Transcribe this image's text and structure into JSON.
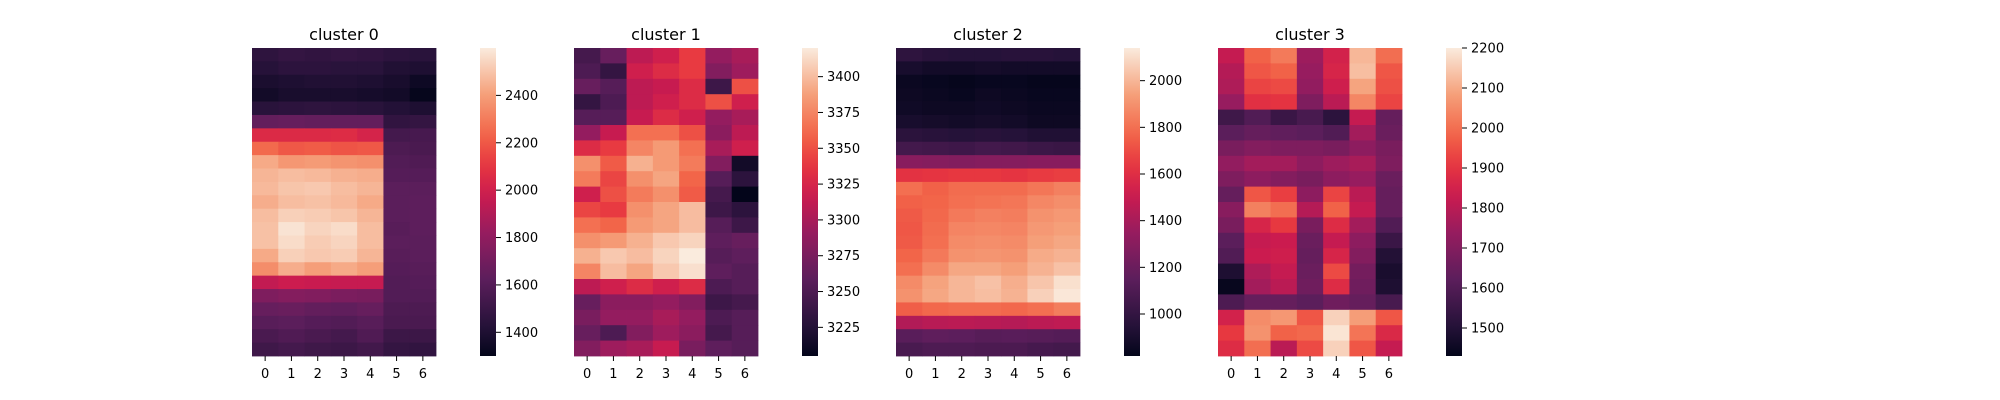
{
  "chart_data": [
    {
      "type": "heatmap",
      "title": "cluster 0",
      "x_categories": [
        "0",
        "1",
        "2",
        "3",
        "4",
        "5",
        "6"
      ],
      "colorbar": {
        "min": 1300,
        "max": 2600,
        "ticks": [
          1400,
          1600,
          1800,
          2000,
          2200,
          2400
        ]
      },
      "values": [
        [
          1460,
          1480,
          1470,
          1480,
          1470,
          1450,
          1440
        ],
        [
          1430,
          1450,
          1450,
          1440,
          1440,
          1410,
          1400
        ],
        [
          1390,
          1400,
          1410,
          1410,
          1400,
          1380,
          1340
        ],
        [
          1360,
          1380,
          1380,
          1380,
          1370,
          1360,
          1310
        ],
        [
          1440,
          1450,
          1460,
          1450,
          1440,
          1420,
          1400
        ],
        [
          1650,
          1660,
          1650,
          1650,
          1650,
          1470,
          1480
        ],
        [
          2050,
          2050,
          2050,
          2060,
          2020,
          1540,
          1550
        ],
        [
          2250,
          2200,
          2210,
          2190,
          2200,
          1570,
          1560
        ],
        [
          2430,
          2380,
          2390,
          2370,
          2360,
          1590,
          1580
        ],
        [
          2460,
          2480,
          2470,
          2450,
          2440,
          1600,
          1600
        ],
        [
          2470,
          2500,
          2510,
          2480,
          2460,
          1620,
          1620
        ],
        [
          2440,
          2480,
          2490,
          2470,
          2430,
          1620,
          1630
        ],
        [
          2480,
          2530,
          2520,
          2500,
          2460,
          1620,
          1630
        ],
        [
          2490,
          2580,
          2540,
          2560,
          2480,
          1610,
          1630
        ],
        [
          2490,
          2560,
          2520,
          2540,
          2480,
          1620,
          1620
        ],
        [
          2430,
          2530,
          2510,
          2520,
          2460,
          1610,
          1620
        ],
        [
          2350,
          2440,
          2400,
          2430,
          2400,
          1600,
          1610
        ],
        [
          1950,
          1980,
          1970,
          1960,
          1960,
          1590,
          1600
        ],
        [
          1740,
          1760,
          1750,
          1730,
          1720,
          1590,
          1590
        ],
        [
          1660,
          1670,
          1650,
          1640,
          1660,
          1570,
          1570
        ],
        [
          1610,
          1620,
          1600,
          1590,
          1610,
          1560,
          1560
        ],
        [
          1560,
          1580,
          1560,
          1540,
          1580,
          1510,
          1510
        ],
        [
          1520,
          1540,
          1520,
          1510,
          1530,
          1480,
          1470
        ]
      ]
    },
    {
      "type": "heatmap",
      "title": "cluster 1",
      "x_categories": [
        "0",
        "1",
        "2",
        "3",
        "4",
        "5",
        "6"
      ],
      "colorbar": {
        "min": 3205,
        "max": 3420,
        "ticks": [
          3225,
          3250,
          3275,
          3300,
          3325,
          3350,
          3375,
          3400
        ]
      },
      "values": [
        [
          3245,
          3265,
          3310,
          3320,
          3340,
          3290,
          3300
        ],
        [
          3250,
          3235,
          3320,
          3330,
          3340,
          3280,
          3295
        ],
        [
          3265,
          3255,
          3310,
          3315,
          3330,
          3240,
          3350
        ],
        [
          3235,
          3250,
          3310,
          3320,
          3330,
          3350,
          3320
        ],
        [
          3255,
          3255,
          3315,
          3330,
          3320,
          3290,
          3300
        ],
        [
          3290,
          3315,
          3365,
          3365,
          3350,
          3285,
          3310
        ],
        [
          3330,
          3340,
          3375,
          3385,
          3365,
          3300,
          3320
        ],
        [
          3380,
          3355,
          3395,
          3385,
          3370,
          3280,
          3215
        ],
        [
          3370,
          3345,
          3380,
          3390,
          3360,
          3255,
          3230
        ],
        [
          3320,
          3350,
          3370,
          3380,
          3355,
          3245,
          3205
        ],
        [
          3345,
          3340,
          3380,
          3390,
          3400,
          3240,
          3230
        ],
        [
          3365,
          3360,
          3385,
          3390,
          3400,
          3255,
          3240
        ],
        [
          3380,
          3385,
          3395,
          3405,
          3410,
          3260,
          3265
        ],
        [
          3395,
          3405,
          3400,
          3410,
          3420,
          3255,
          3260
        ],
        [
          3375,
          3400,
          3390,
          3405,
          3415,
          3260,
          3255
        ],
        [
          3310,
          3320,
          3330,
          3320,
          3330,
          3250,
          3255
        ],
        [
          3265,
          3285,
          3285,
          3290,
          3280,
          3240,
          3245
        ],
        [
          3275,
          3290,
          3290,
          3300,
          3290,
          3250,
          3255
        ],
        [
          3265,
          3250,
          3280,
          3295,
          3285,
          3245,
          3255
        ],
        [
          3280,
          3295,
          3300,
          3315,
          3275,
          3260,
          3255
        ]
      ]
    },
    {
      "type": "heatmap",
      "title": "cluster 2",
      "x_categories": [
        "0",
        "1",
        "2",
        "3",
        "4",
        "5",
        "6"
      ],
      "colorbar": {
        "min": 820,
        "max": 2140,
        "ticks": [
          1000,
          1200,
          1400,
          1600,
          1800,
          2000
        ]
      },
      "values": [
        [
          980,
          960,
          950,
          950,
          960,
          960,
          950
        ],
        [
          900,
          880,
          880,
          890,
          880,
          880,
          880
        ],
        [
          850,
          840,
          830,
          840,
          840,
          830,
          830
        ],
        [
          860,
          850,
          840,
          860,
          850,
          840,
          840
        ],
        [
          870,
          860,
          860,
          870,
          860,
          850,
          850
        ],
        [
          900,
          890,
          880,
          890,
          880,
          860,
          860
        ],
        [
          970,
          960,
          950,
          960,
          950,
          930,
          930
        ],
        [
          1060,
          1050,
          1040,
          1060,
          1050,
          1030,
          1020
        ],
        [
          1300,
          1290,
          1280,
          1290,
          1290,
          1300,
          1300
        ],
        [
          1620,
          1630,
          1640,
          1640,
          1630,
          1650,
          1660
        ],
        [
          1800,
          1760,
          1790,
          1790,
          1790,
          1820,
          1850
        ],
        [
          1760,
          1770,
          1800,
          1810,
          1820,
          1870,
          1890
        ],
        [
          1740,
          1780,
          1830,
          1850,
          1840,
          1900,
          1920
        ],
        [
          1730,
          1790,
          1860,
          1870,
          1860,
          1920,
          1940
        ],
        [
          1740,
          1800,
          1880,
          1890,
          1880,
          1940,
          1960
        ],
        [
          1770,
          1830,
          1900,
          1910,
          1900,
          1970,
          1990
        ],
        [
          1800,
          1880,
          1960,
          1960,
          1940,
          1990,
          2030
        ],
        [
          1880,
          1950,
          2000,
          2030,
          1980,
          2040,
          2110
        ],
        [
          1900,
          1960,
          2000,
          2020,
          1990,
          2070,
          2130
        ],
        [
          1750,
          1780,
          1790,
          1790,
          1780,
          1800,
          1840
        ],
        [
          1430,
          1450,
          1460,
          1450,
          1440,
          1460,
          1470
        ],
        [
          1140,
          1160,
          1150,
          1130,
          1140,
          1130,
          1120
        ],
        [
          1080,
          1100,
          1100,
          1090,
          1090,
          1070,
          1060
        ]
      ]
    },
    {
      "type": "heatmap",
      "title": "cluster 3",
      "x_categories": [
        "0",
        "1",
        "2",
        "3",
        "4",
        "5",
        "6"
      ],
      "colorbar": {
        "min": 1430,
        "max": 2200,
        "ticks": [
          1500,
          1600,
          1700,
          1800,
          1900,
          2000,
          2100,
          2200
        ]
      },
      "values": [
        [
          1820,
          1980,
          2020,
          1750,
          1850,
          2120,
          2000
        ],
        [
          1790,
          1960,
          1980,
          1740,
          1860,
          2130,
          1960
        ],
        [
          1780,
          1930,
          1940,
          1730,
          1840,
          2090,
          1950
        ],
        [
          1740,
          1890,
          1900,
          1690,
          1800,
          2040,
          1930
        ],
        [
          1560,
          1600,
          1550,
          1580,
          1520,
          1820,
          1640
        ],
        [
          1620,
          1640,
          1630,
          1620,
          1600,
          1760,
          1650
        ],
        [
          1680,
          1700,
          1690,
          1690,
          1680,
          1720,
          1680
        ],
        [
          1730,
          1760,
          1760,
          1720,
          1750,
          1770,
          1690
        ],
        [
          1690,
          1720,
          1700,
          1680,
          1720,
          1740,
          1650
        ],
        [
          1640,
          1960,
          1920,
          1720,
          1930,
          1800,
          1640
        ],
        [
          1710,
          2030,
          2000,
          1790,
          1980,
          1820,
          1640
        ],
        [
          1680,
          1860,
          1910,
          1680,
          1880,
          1760,
          1600
        ],
        [
          1620,
          1820,
          1830,
          1650,
          1820,
          1720,
          1550
        ],
        [
          1600,
          1830,
          1840,
          1640,
          1860,
          1700,
          1500
        ],
        [
          1490,
          1780,
          1820,
          1650,
          1940,
          1670,
          1480
        ],
        [
          1440,
          1760,
          1800,
          1660,
          1880,
          1660,
          1490
        ],
        [
          1590,
          1640,
          1640,
          1620,
          1660,
          1640,
          1580
        ],
        [
          1850,
          2050,
          2070,
          1960,
          2160,
          2080,
          1960
        ],
        [
          1910,
          2060,
          1980,
          1990,
          2190,
          2010,
          1870
        ],
        [
          1880,
          2000,
          1800,
          1940,
          2160,
          1960,
          1820
        ]
      ]
    }
  ]
}
